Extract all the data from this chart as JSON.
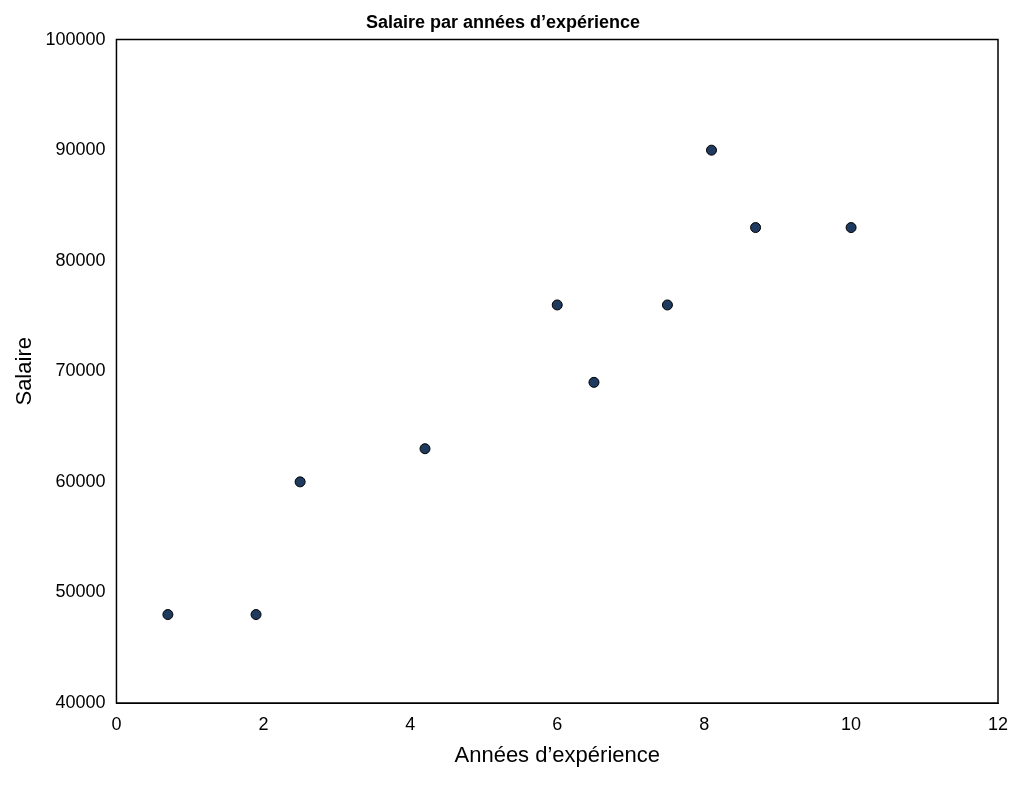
{
  "chart_data": {
    "type": "scatter",
    "title": "Salaire par années d’expérience",
    "xlabel": "Années d’expérience",
    "ylabel": "Salaire",
    "x": [
      0.7,
      1.9,
      2.5,
      4.2,
      6.0,
      6.5,
      7.5,
      8.1,
      8.7,
      10.0
    ],
    "values": [
      48000,
      48000,
      60000,
      63000,
      76000,
      69000,
      76000,
      90000,
      83000,
      83000
    ],
    "color": "#1f3a5f",
    "marker": "circle",
    "grid": false,
    "legend": false,
    "xlim": [
      0,
      12
    ],
    "xticks": [
      0,
      2,
      4,
      6,
      8,
      10,
      12
    ],
    "ylim": [
      40000,
      100000
    ],
    "yticks": [
      40000,
      50000,
      60000,
      70000,
      80000,
      90000,
      100000
    ]
  }
}
